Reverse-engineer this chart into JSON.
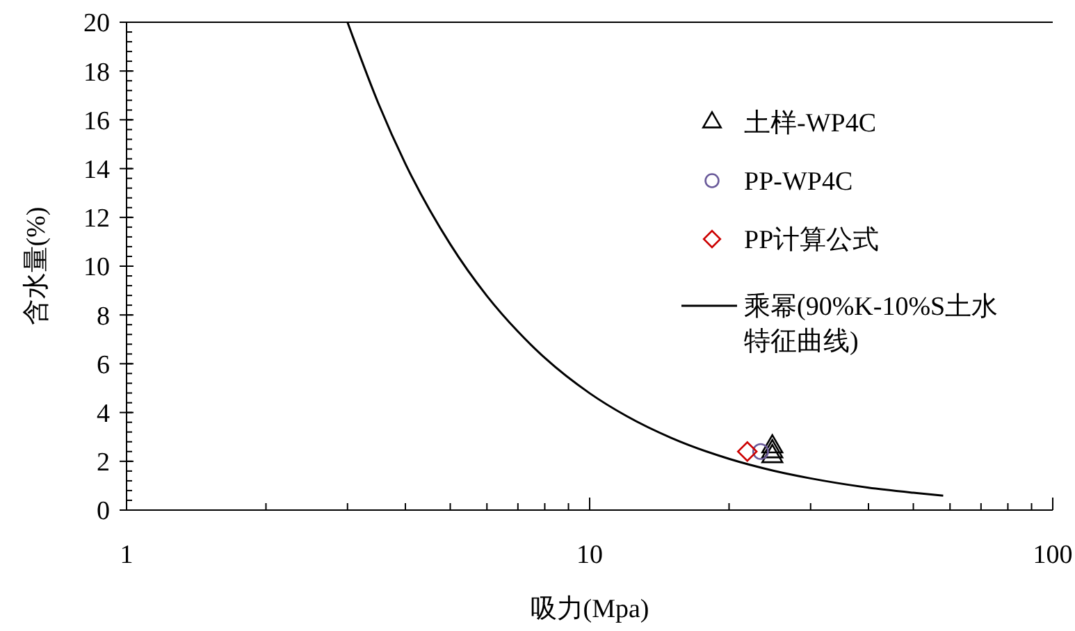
{
  "chart_data": {
    "type": "scatter",
    "xlabel": "吸力(Mpa)",
    "ylabel": "含水量(%)",
    "log": "x",
    "xlim": [
      1,
      100
    ],
    "ylim": [
      0,
      20
    ],
    "xticks": [
      1,
      {
        "value": 2,
        "label": null
      },
      {
        "value": 3,
        "label": null
      },
      {
        "value": 4,
        "label": null
      },
      {
        "value": 5,
        "label": null
      },
      {
        "value": 6,
        "label": null
      },
      {
        "value": 7,
        "label": null
      },
      {
        "value": 8,
        "label": null
      },
      {
        "value": 9,
        "label": null
      },
      10,
      {
        "value": 20,
        "label": null
      },
      {
        "value": 30,
        "label": null
      },
      {
        "value": 40,
        "label": null
      },
      {
        "value": 50,
        "label": null
      },
      {
        "value": 60,
        "label": null
      },
      {
        "value": 70,
        "label": null
      },
      {
        "value": 80,
        "label": null
      },
      {
        "value": 90,
        "label": null
      },
      100
    ],
    "yticks": [
      0,
      2,
      4,
      6,
      8,
      10,
      12,
      14,
      16,
      18,
      20
    ],
    "grid": false,
    "legend": "right",
    "series": [
      {
        "name": "土样-WP4C",
        "marker": "triangle",
        "color": "#000000",
        "x": [
          24.8,
          24.8,
          24.8
        ],
        "values": [
          2.2,
          2.4,
          2.6
        ]
      },
      {
        "name": "PP-WP4C",
        "marker": "circle",
        "color": "#6a5a9a",
        "x": [
          23.4
        ],
        "values": [
          2.4
        ]
      },
      {
        "name": "PP计算公式",
        "marker": "diamond",
        "color": "#cc0000",
        "x": [
          21.9
        ],
        "values": [
          2.4
        ]
      },
      {
        "name": "乘幂(90%K-10%S土水特征曲线)",
        "type": "line",
        "marker": "none",
        "line_style": "solid",
        "color": "#000000",
        "x": [
          3,
          3.5,
          4,
          5,
          6,
          7,
          8,
          10,
          12,
          15,
          20,
          25,
          30,
          40,
          50,
          58
        ],
        "values": [
          20,
          16.66,
          14.2,
          10.9,
          8.78,
          7.32,
          6.24,
          4.79,
          3.86,
          2.96,
          2.1,
          1.61,
          1.3,
          0.92,
          0.71,
          0.59
        ]
      }
    ]
  }
}
